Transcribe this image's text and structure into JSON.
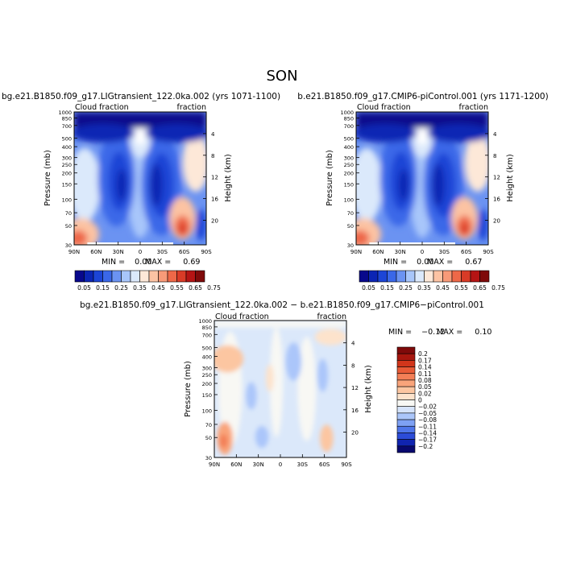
{
  "page_title": "SON",
  "colors": {
    "abs_scale": [
      "#08088c",
      "#0b25b4",
      "#1c45d6",
      "#3a67e8",
      "#6b93f2",
      "#a8c6fa",
      "#dbe9fb",
      "#fde8d8",
      "#fcc3a3",
      "#f89a78",
      "#ee6848",
      "#d93b27",
      "#b51414",
      "#7f0a0a"
    ],
    "diff_scale": [
      "#08086e",
      "#1024b0",
      "#2c4cd8",
      "#4f76ea",
      "#7ea1f4",
      "#abc6fa",
      "#d6e4fb",
      "#f8f8f4",
      "#fde3cc",
      "#fcc6a1",
      "#f9a47a",
      "#f37f57",
      "#e85b37",
      "#d2361b",
      "#a7160e",
      "#7f0a0a"
    ]
  },
  "chart_data": [
    {
      "type": "heatmap",
      "title": "bg.e21.B1850.f09_g17.LIGtransient_122.0ka.002 (yrs 1071-1100)",
      "left_label": "Cloud fraction",
      "right_label": "fraction",
      "ylabel": "Pressure (mb)",
      "y2label": "Height (km)",
      "x_ticks": [
        "90N",
        "60N",
        "30N",
        "0",
        "30S",
        "60S",
        "90S"
      ],
      "y_ticks": [
        "1000",
        "850",
        "700",
        "500",
        "400",
        "300",
        "250",
        "200",
        "150",
        "100",
        "70",
        "50",
        "30"
      ],
      "y2_ticks": [
        "4",
        "8",
        "12",
        "16",
        "20"
      ],
      "min_text": "MIN =    0.00",
      "max_text": "MAX =     0.69",
      "min": 0.0,
      "max": 0.69
    },
    {
      "type": "heatmap",
      "title": "b.e21.B1850.f09_g17.CMIP6-piControl.001 (yrs 1171-1200)",
      "left_label": "Cloud fraction",
      "right_label": "fraction",
      "ylabel": "Pressure (mb)",
      "y2label": "Height (km)",
      "x_ticks": [
        "90N",
        "60N",
        "30N",
        "0",
        "30S",
        "60S",
        "90S"
      ],
      "y_ticks": [
        "1000",
        "850",
        "700",
        "500",
        "400",
        "300",
        "250",
        "200",
        "150",
        "100",
        "70",
        "50",
        "30"
      ],
      "y2_ticks": [
        "4",
        "8",
        "12",
        "16",
        "20"
      ],
      "min_text": "MIN =    0.00",
      "max_text": "MAX =     0.67",
      "min": 0.0,
      "max": 0.67
    },
    {
      "type": "heatmap",
      "title": "bg.e21.B1850.f09_g17.LIGtransient_122.0ka.002 − b.e21.B1850.f09_g17.CMIP6−piControl.001",
      "left_label": "Cloud fraction",
      "right_label": "fraction",
      "ylabel": "Pressure (mb)",
      "y2label": "Height (km)",
      "x_ticks": [
        "90N",
        "60N",
        "30N",
        "0",
        "30S",
        "60S",
        "90S"
      ],
      "y_ticks": [
        "1000",
        "850",
        "700",
        "500",
        "400",
        "300",
        "250",
        "200",
        "150",
        "100",
        "70",
        "50",
        "30"
      ],
      "y2_ticks": [
        "4",
        "8",
        "12",
        "16",
        "20"
      ],
      "min_text": "MIN =    −0.12",
      "max_text": "MAX =     0.10",
      "min": -0.12,
      "max": 0.1
    }
  ],
  "colorbar_abs": {
    "labels": [
      "0.05",
      "0.15",
      "0.25",
      "0.35",
      "0.45",
      "0.55",
      "0.65",
      "0.75"
    ]
  },
  "colorbar_diff": {
    "labels": [
      "0.2",
      "0.17",
      "0.14",
      "0.11",
      "0.08",
      "0.05",
      "0.02",
      "0",
      "−0.02",
      "−0.05",
      "−0.08",
      "−0.11",
      "−0.14",
      "−0.17",
      "−0.2"
    ]
  }
}
